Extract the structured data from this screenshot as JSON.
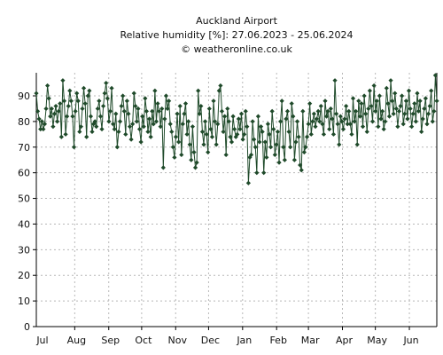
{
  "chart_data": {
    "type": "line",
    "title": "Auckland Airport",
    "subtitle": "Relative humidity [%]: 27.06.2023 - 25.06.2024",
    "credit": "© weatheronline.co.uk",
    "xlabel": "",
    "ylabel": "",
    "ylim": [
      0,
      99
    ],
    "yticks": [
      0,
      10,
      20,
      30,
      40,
      50,
      60,
      70,
      80,
      90
    ],
    "x_range_days": [
      0,
      365
    ],
    "month_ticks": [
      {
        "label": "Jul",
        "day": 4
      },
      {
        "label": "Aug",
        "day": 35
      },
      {
        "label": "Sep",
        "day": 66
      },
      {
        "label": "Oct",
        "day": 96
      },
      {
        "label": "Nov",
        "day": 127
      },
      {
        "label": "Dec",
        "day": 157
      },
      {
        "label": "Jan",
        "day": 188
      },
      {
        "label": "Feb",
        "day": 219
      },
      {
        "label": "Mar",
        "day": 248
      },
      {
        "label": "Apr",
        "day": 279
      },
      {
        "label": "May",
        "day": 309
      },
      {
        "label": "Jun",
        "day": 340
      }
    ],
    "month_boundaries": [
      35,
      66,
      96,
      127,
      157,
      188,
      219,
      248,
      279,
      309,
      340
    ],
    "grid": true,
    "series_color": "#1f4a2a",
    "values": [
      91,
      84,
      81,
      77,
      80,
      77,
      79,
      85,
      94,
      89,
      82,
      85,
      78,
      83,
      86,
      80,
      84,
      87,
      74,
      96,
      88,
      75,
      82,
      86,
      92,
      88,
      82,
      70,
      84,
      91,
      88,
      76,
      78,
      85,
      93,
      87,
      74,
      90,
      92,
      82,
      76,
      79,
      80,
      78,
      85,
      88,
      82,
      77,
      86,
      91,
      95,
      89,
      80,
      84,
      93,
      79,
      77,
      83,
      70,
      76,
      80,
      86,
      90,
      84,
      75,
      88,
      83,
      78,
      73,
      79,
      91,
      86,
      80,
      85,
      77,
      72,
      82,
      78,
      89,
      84,
      76,
      81,
      74,
      84,
      79,
      92,
      80,
      87,
      84,
      78,
      85,
      62,
      81,
      90,
      85,
      88,
      79,
      76,
      70,
      66,
      74,
      83,
      72,
      86,
      67,
      79,
      83,
      87,
      75,
      80,
      71,
      65,
      78,
      68,
      62,
      64,
      92,
      83,
      86,
      76,
      71,
      80,
      75,
      68,
      85,
      77,
      74,
      88,
      80,
      71,
      79,
      92,
      94,
      84,
      76,
      82,
      67,
      85,
      80,
      74,
      72,
      82,
      77,
      74,
      75,
      81,
      77,
      83,
      73,
      75,
      84,
      78,
      56,
      66,
      67,
      80,
      73,
      70,
      60,
      82,
      72,
      78,
      76,
      60,
      72,
      66,
      79,
      75,
      70,
      84,
      77,
      67,
      71,
      76,
      64,
      80,
      88,
      70,
      65,
      81,
      84,
      76,
      70,
      87,
      82,
      65,
      72,
      80,
      74,
      63,
      61,
      84,
      68,
      70,
      74,
      79,
      87,
      75,
      80,
      83,
      78,
      81,
      84,
      80,
      86,
      79,
      75,
      88,
      82,
      84,
      77,
      85,
      81,
      75,
      96,
      83,
      79,
      71,
      82,
      80,
      77,
      81,
      86,
      79,
      84,
      79,
      75,
      89,
      80,
      84,
      71,
      88,
      82,
      87,
      78,
      90,
      83,
      76,
      85,
      92,
      86,
      80,
      94,
      84,
      88,
      78,
      90,
      81,
      84,
      77,
      80,
      93,
      87,
      82,
      96,
      88,
      83,
      91,
      85,
      78,
      84,
      86,
      90,
      79,
      83,
      88,
      81,
      92,
      85,
      78,
      83,
      87,
      80,
      91,
      84,
      88,
      76,
      81,
      85,
      89,
      79,
      83,
      86,
      92,
      80,
      84,
      98,
      88
    ]
  }
}
